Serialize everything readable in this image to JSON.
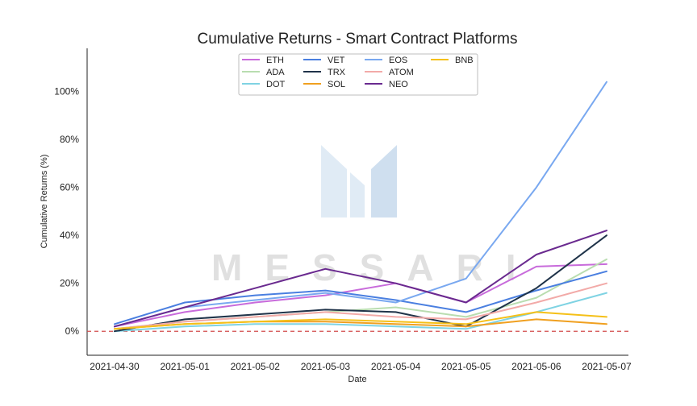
{
  "chart_data": {
    "type": "line",
    "title": "Cumulative Returns - Smart Contract Platforms",
    "xlabel": "Date",
    "ylabel": "Cumulative Returns (%)",
    "xlim": [
      "2021-04-30",
      "2021-05-07"
    ],
    "ylim": [
      -10,
      118
    ],
    "x_ticks": [
      "2021-04-30",
      "2021-05-01",
      "2021-05-02",
      "2021-05-03",
      "2021-05-04",
      "2021-05-05",
      "2021-05-06",
      "2021-05-07"
    ],
    "y_ticks": [
      0,
      20,
      40,
      60,
      80,
      100
    ],
    "y_tick_labels": [
      "0%",
      "20%",
      "40%",
      "60%",
      "80%",
      "100%"
    ],
    "baseline": 0,
    "grid": false,
    "legend_position": "top-center",
    "watermark": "MESSARI",
    "series": [
      {
        "name": "ETH",
        "color": "#c86bdb",
        "x": [
          "2021-04-30",
          "2021-05-01",
          "2021-05-02",
          "2021-05-03",
          "2021-05-04",
          "2021-05-05",
          "2021-05-06",
          "2021-05-07"
        ],
        "values": [
          2,
          8,
          12,
          15,
          20,
          12,
          27,
          28
        ]
      },
      {
        "name": "ADA",
        "color": "#b9ddb0",
        "x": [
          "2021-04-30",
          "2021-05-01",
          "2021-05-02",
          "2021-05-03",
          "2021-05-04",
          "2021-05-05",
          "2021-05-06",
          "2021-05-07"
        ],
        "values": [
          1,
          4,
          6,
          8,
          10,
          6,
          14,
          30
        ]
      },
      {
        "name": "DOT",
        "color": "#7fd3e3",
        "x": [
          "2021-04-30",
          "2021-05-01",
          "2021-05-02",
          "2021-05-03",
          "2021-05-04",
          "2021-05-05",
          "2021-05-06",
          "2021-05-07"
        ],
        "values": [
          0,
          2,
          3,
          3,
          2,
          1,
          8,
          16
        ]
      },
      {
        "name": "VET",
        "color": "#4a7fe0",
        "x": [
          "2021-04-30",
          "2021-05-01",
          "2021-05-02",
          "2021-05-03",
          "2021-05-04",
          "2021-05-05",
          "2021-05-06",
          "2021-05-07"
        ],
        "values": [
          3,
          12,
          15,
          17,
          13,
          8,
          17,
          25
        ]
      },
      {
        "name": "TRX",
        "color": "#1f3349",
        "x": [
          "2021-04-30",
          "2021-05-01",
          "2021-05-02",
          "2021-05-03",
          "2021-05-04",
          "2021-05-05",
          "2021-05-06",
          "2021-05-07"
        ],
        "values": [
          0,
          5,
          7,
          9,
          8,
          2,
          18,
          40
        ]
      },
      {
        "name": "SOL",
        "color": "#f0a020",
        "x": [
          "2021-04-30",
          "2021-05-01",
          "2021-05-02",
          "2021-05-03",
          "2021-05-04",
          "2021-05-05",
          "2021-05-06",
          "2021-05-07"
        ],
        "values": [
          1,
          3,
          4,
          4,
          3,
          2,
          5,
          3
        ]
      },
      {
        "name": "EOS",
        "color": "#79a8f0",
        "x": [
          "2021-04-30",
          "2021-05-01",
          "2021-05-02",
          "2021-05-03",
          "2021-05-04",
          "2021-05-05",
          "2021-05-06",
          "2021-05-07"
        ],
        "values": [
          2,
          10,
          13,
          16,
          12,
          22,
          60,
          104
        ]
      },
      {
        "name": "ATOM",
        "color": "#f2aaa8",
        "x": [
          "2021-04-30",
          "2021-05-01",
          "2021-05-02",
          "2021-05-03",
          "2021-05-04",
          "2021-05-05",
          "2021-05-06",
          "2021-05-07"
        ],
        "values": [
          1,
          4,
          6,
          8,
          6,
          5,
          12,
          20
        ]
      },
      {
        "name": "NEO",
        "color": "#6a2a8f",
        "x": [
          "2021-04-30",
          "2021-05-01",
          "2021-05-02",
          "2021-05-03",
          "2021-05-04",
          "2021-05-05",
          "2021-05-06",
          "2021-05-07"
        ],
        "values": [
          2,
          10,
          18,
          26,
          20,
          12,
          32,
          42
        ]
      },
      {
        "name": "BNB",
        "color": "#f5c018",
        "x": [
          "2021-04-30",
          "2021-05-01",
          "2021-05-02",
          "2021-05-03",
          "2021-05-04",
          "2021-05-05",
          "2021-05-06",
          "2021-05-07"
        ],
        "values": [
          1,
          3,
          4,
          5,
          4,
          3,
          8,
          6
        ]
      }
    ]
  }
}
